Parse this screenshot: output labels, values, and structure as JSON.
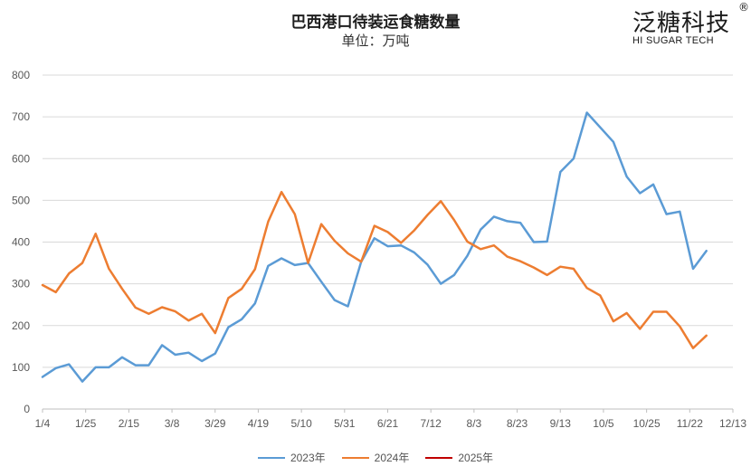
{
  "header": {
    "title": "巴西港口待装运食糖数量",
    "subtitle": "单位：万吨"
  },
  "logo": {
    "name": "泛糖科技",
    "registered": "®",
    "english": "HI SUGAR TECH"
  },
  "colors": {
    "series_2023": "#5b9bd5",
    "series_2024": "#ed7d31",
    "series_2025": "#c00000",
    "gridline": "#d9d9d9",
    "axis": "#bfbfbf",
    "text": "#595959"
  },
  "chart_data": {
    "type": "line",
    "title": "巴西港口待装运食糖数量",
    "subtitle": "单位：万吨",
    "ylim": [
      0,
      800
    ],
    "yticks": [
      0,
      100,
      200,
      300,
      400,
      500,
      600,
      700,
      800
    ],
    "grid": true,
    "legend_position": "bottom",
    "x_tick_labels": [
      "1/4",
      "1/25",
      "2/15",
      "3/8",
      "3/29",
      "4/19",
      "5/10",
      "5/31",
      "6/21",
      "7/12",
      "8/3",
      "8/23",
      "9/13",
      "10/5",
      "10/25",
      "11/22",
      "12/13"
    ],
    "point_count": 53,
    "series": [
      {
        "name": "2023年",
        "values": [
          77,
          98,
          107,
          66,
          100,
          100,
          124,
          105,
          105,
          153,
          130,
          135,
          115,
          133,
          196,
          215,
          253,
          343,
          361,
          345,
          350,
          305,
          261,
          246,
          353,
          409,
          390,
          392,
          375,
          346,
          300,
          321,
          367,
          430,
          461,
          450,
          446,
          400,
          401,
          568,
          600,
          710,
          675,
          640,
          557,
          517,
          538,
          467,
          473,
          336,
          379
        ]
      },
      {
        "name": "2024年",
        "values": [
          297,
          280,
          325,
          350,
          420,
          336,
          288,
          243,
          228,
          244,
          234,
          212,
          228,
          182,
          266,
          288,
          335,
          449,
          520,
          467,
          350,
          443,
          403,
          373,
          353,
          439,
          424,
          398,
          428,
          465,
          498,
          453,
          401,
          383,
          392,
          365,
          354,
          339,
          321,
          341,
          336,
          290,
          272,
          210,
          230,
          192,
          233,
          233,
          198,
          146,
          176
        ]
      },
      {
        "name": "2025年",
        "values": []
      }
    ]
  }
}
